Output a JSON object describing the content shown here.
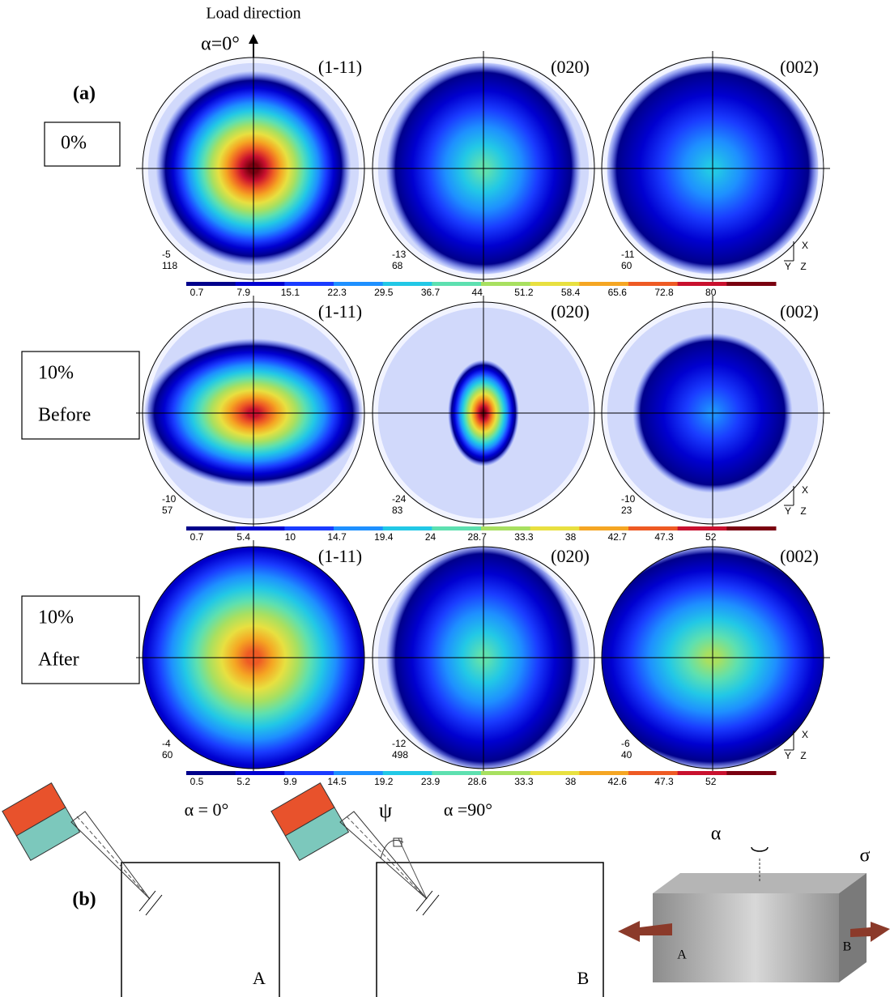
{
  "panel_a": {
    "label": "(a)",
    "load_direction": "Load direction",
    "alpha_label": "α=0°",
    "axes": {
      "x": "X",
      "y": "Y",
      "z": "Z"
    },
    "rows": [
      {
        "label_lines": [
          "0%"
        ],
        "figures": [
          {
            "plane": "(1-11)",
            "min": "-5",
            "max": "118"
          },
          {
            "plane": "(020)",
            "min": "-13",
            "max": "68"
          },
          {
            "plane": "(002)",
            "min": "-11",
            "max": "60"
          }
        ],
        "colorbar": [
          "0.7",
          "7.9",
          "15.1",
          "22.3",
          "29.5",
          "36.7",
          "44",
          "51.2",
          "58.4",
          "65.6",
          "72.8",
          "80"
        ]
      },
      {
        "label_lines": [
          "10%",
          "Before"
        ],
        "figures": [
          {
            "plane": "(1-11)",
            "min": "-10",
            "max": "57"
          },
          {
            "plane": "(020)",
            "min": "-24",
            "max": "83"
          },
          {
            "plane": "(002)",
            "min": "-10",
            "max": "23"
          }
        ],
        "colorbar": [
          "0.7",
          "5.4",
          "10",
          "14.7",
          "19.4",
          "24",
          "28.7",
          "33.3",
          "38",
          "42.7",
          "47.3",
          "52"
        ]
      },
      {
        "label_lines": [
          "10%",
          "After"
        ],
        "figures": [
          {
            "plane": "(1-11)",
            "min": "-4",
            "max": "60"
          },
          {
            "plane": "(020)",
            "min": "-12",
            "max": "498"
          },
          {
            "plane": "(002)",
            "min": "-6",
            "max": "40"
          }
        ],
        "colorbar": [
          "0.5",
          "5.2",
          "9.9",
          "14.5",
          "19.2",
          "23.9",
          "28.6",
          "33.3",
          "38",
          "42.6",
          "47.3",
          "52"
        ]
      }
    ]
  },
  "panel_b": {
    "label": "(b)",
    "setup_1": {
      "alpha": "α = 0°",
      "sample": "A"
    },
    "setup_2": {
      "psi": "ψ",
      "alpha": "α =90°",
      "sample": "B"
    },
    "sample_3d": {
      "alpha": "α",
      "sigma": "σ",
      "end_a": "A",
      "end_b": "B"
    }
  }
}
